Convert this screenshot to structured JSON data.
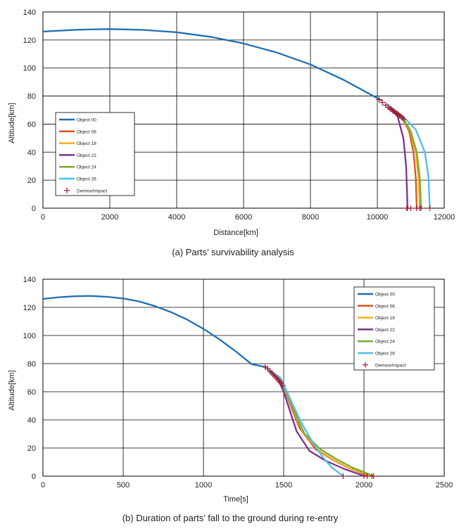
{
  "chart_data": [
    {
      "type": "line",
      "caption": "(a) Parts’ survivability analysis",
      "xlabel": "Distance[km]",
      "ylabel": "Altitude[km]",
      "xlim": [
        0,
        12000
      ],
      "ylim": [
        0,
        140
      ],
      "xticks": [
        "0",
        "2000",
        "4000",
        "6000",
        "8000",
        "10000",
        "12000"
      ],
      "yticks": [
        "0",
        "20",
        "40",
        "60",
        "80",
        "100",
        "120",
        "140"
      ],
      "grid": true,
      "legend_position": "middle-left",
      "series": [
        {
          "name": "Object 00",
          "color": "#1f6fb4",
          "x": [
            0,
            1000,
            2000,
            3000,
            4000,
            5000,
            6000,
            7000,
            8000,
            9000,
            10000,
            10120
          ],
          "y": [
            126,
            127.3,
            127.8,
            127.2,
            125.5,
            122.3,
            117.5,
            111,
            102.5,
            91.5,
            78.5,
            77
          ]
        },
        {
          "name": "Object 06",
          "color": "#d9531e",
          "x": [
            10300,
            10700,
            10950,
            11080,
            11150,
            11170,
            11180
          ],
          "y": [
            74,
            66,
            55,
            40,
            22,
            5,
            0
          ]
        },
        {
          "name": "Object 18",
          "color": "#edb120",
          "x": [
            10300,
            10700,
            10980,
            11150,
            11230,
            11260,
            11270
          ],
          "y": [
            74,
            66,
            55,
            40,
            22,
            5,
            0
          ]
        },
        {
          "name": "Object 22",
          "color": "#7e2f8e",
          "x": [
            10300,
            10600,
            10780,
            10860,
            10890,
            10900
          ],
          "y": [
            74,
            66,
            50,
            30,
            10,
            0
          ]
        },
        {
          "name": "Object 24",
          "color": "#77ac30",
          "x": [
            10300,
            10720,
            11000,
            11180,
            11270,
            11300,
            11310
          ],
          "y": [
            74,
            66,
            55,
            40,
            22,
            5,
            0
          ]
        },
        {
          "name": "Object 26",
          "color": "#4dbeee",
          "x": [
            10300,
            10750,
            11150,
            11420,
            11530,
            11560,
            11570
          ],
          "y": [
            74,
            66,
            56,
            40,
            22,
            5,
            0
          ]
        }
      ],
      "markers": {
        "name": "Demise/Impact",
        "color": "#a2142f",
        "x": [
          10050,
          10150,
          10250,
          10320,
          10380,
          10420,
          10460,
          10500,
          10540,
          10580,
          10620,
          10660,
          10700,
          10740,
          10790,
          10880,
          10900,
          11000,
          11170,
          11270,
          11310,
          11570
        ],
        "y": [
          77.5,
          75.5,
          73.5,
          72,
          71,
          70.5,
          69.5,
          69,
          68,
          67.5,
          67,
          66,
          65.5,
          64.5,
          63.5,
          0,
          0,
          0,
          0,
          0,
          0,
          0
        ]
      }
    },
    {
      "type": "line",
      "caption": "(b) Duration of parts’ fall to the ground during re-entry",
      "xlabel": "Time[s]",
      "ylabel": "Altitude[km]",
      "xlim": [
        0,
        2500
      ],
      "ylim": [
        0,
        140
      ],
      "xticks": [
        "0",
        "500",
        "1000",
        "1500",
        "2000",
        "2500"
      ],
      "yticks": [
        "0",
        "20",
        "40",
        "60",
        "80",
        "100",
        "120",
        "140"
      ],
      "grid": true,
      "legend_position": "top-right",
      "series": [
        {
          "name": "Object 00",
          "color": "#1f6fb4",
          "x": [
            0,
            100,
            200,
            300,
            400,
            500,
            600,
            700,
            800,
            900,
            1000,
            1100,
            1200,
            1300,
            1390
          ],
          "y": [
            126,
            127.2,
            127.9,
            128.1,
            127.5,
            126.3,
            124.2,
            120.8,
            116.5,
            111.2,
            104.7,
            97.2,
            88.8,
            79.6,
            77.5
          ]
        },
        {
          "name": "Object 06",
          "color": "#d9531e",
          "x": [
            1400,
            1460,
            1510,
            1550,
            1600,
            1700,
            1800,
            1900,
            2000,
            2020
          ],
          "y": [
            76,
            70,
            60,
            48,
            34,
            19,
            12,
            6,
            1.5,
            0
          ]
        },
        {
          "name": "Object 18",
          "color": "#edb120",
          "x": [
            1400,
            1470,
            1520,
            1570,
            1620,
            1720,
            1820,
            1920,
            2030,
            2050
          ],
          "y": [
            76,
            70,
            58,
            44,
            31,
            18,
            11,
            5,
            1,
            0
          ]
        },
        {
          "name": "Object 22",
          "color": "#7e2f8e",
          "x": [
            1400,
            1460,
            1500,
            1540,
            1580,
            1660,
            1760,
            1880,
            1980,
            2000
          ],
          "y": [
            76,
            70,
            60,
            46,
            32,
            18,
            11,
            5,
            1,
            0
          ]
        },
        {
          "name": "Object 24",
          "color": "#77ac30",
          "x": [
            1400,
            1470,
            1520,
            1570,
            1630,
            1730,
            1830,
            1930,
            2040,
            2060
          ],
          "y": [
            76,
            70,
            59,
            45,
            30,
            19,
            12,
            6,
            1,
            0
          ]
        },
        {
          "name": "Object 26",
          "color": "#4dbeee",
          "x": [
            1400,
            1480,
            1520,
            1560,
            1610,
            1680,
            1740,
            1800,
            1860,
            1870
          ],
          "y": [
            76,
            70,
            60,
            50,
            38,
            24,
            14,
            6,
            1,
            0
          ]
        }
      ],
      "markers": {
        "name": "Demise/Impact",
        "color": "#a2142f",
        "x": [
          1385,
          1400,
          1415,
          1425,
          1435,
          1445,
          1455,
          1465,
          1475,
          1485,
          1495,
          1870,
          2000,
          2020,
          2050,
          2060
        ],
        "y": [
          77.5,
          76.5,
          74.5,
          73.5,
          72,
          71,
          69.5,
          68.5,
          67,
          66,
          64.5,
          0,
          0,
          0,
          0,
          0
        ]
      }
    }
  ]
}
